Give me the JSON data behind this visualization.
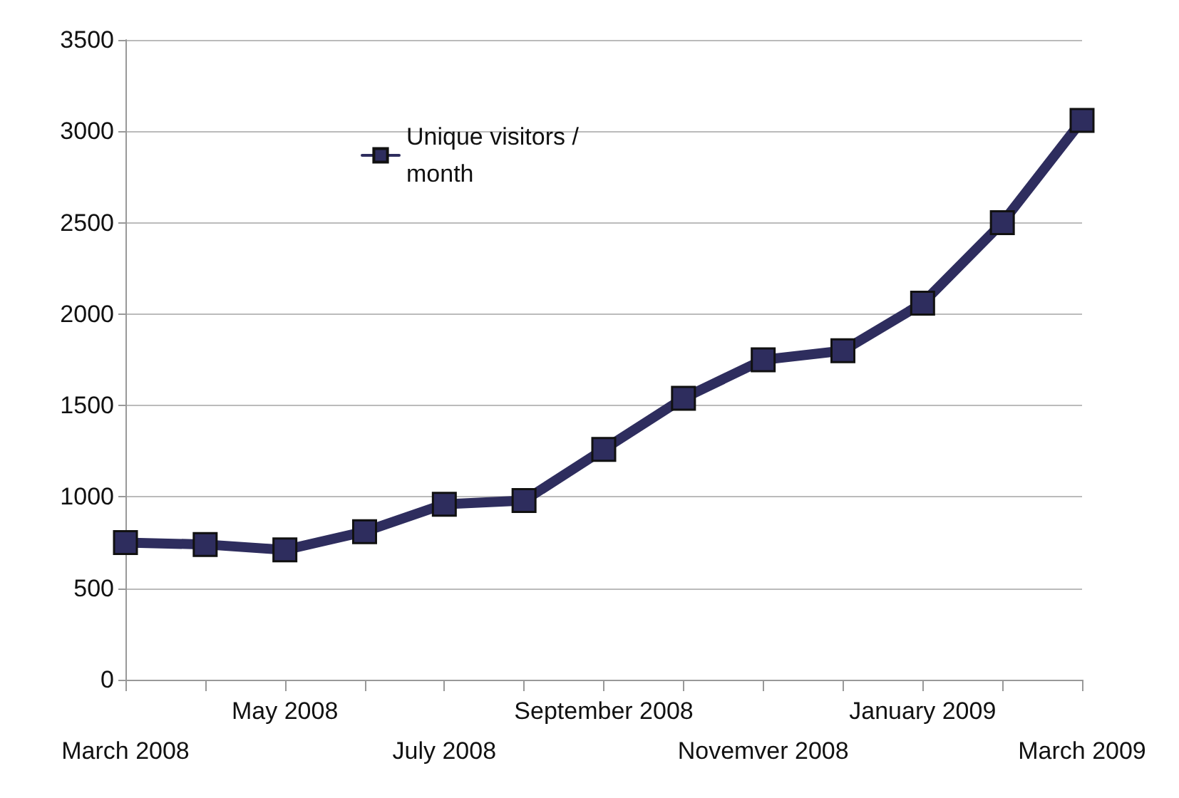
{
  "chart_data": {
    "type": "line",
    "categories": [
      "March 2008",
      null,
      "May 2008",
      null,
      "July 2008",
      null,
      "September 2008",
      null,
      "Novemver 2008",
      null,
      "January 2009",
      null,
      "March 2009"
    ],
    "series": [
      {
        "name": "Unique visitors / month",
        "color": "#2e2d5e",
        "values": [
          750,
          740,
          710,
          810,
          960,
          980,
          1260,
          1540,
          1750,
          1800,
          2060,
          2500,
          3060
        ]
      }
    ],
    "ylim": [
      0,
      3500
    ],
    "yticks": [
      0,
      500,
      1000,
      1500,
      2000,
      2500,
      3000,
      3500
    ],
    "grid": "y",
    "legend": "top left",
    "marker": "square",
    "line_style": "solid"
  }
}
